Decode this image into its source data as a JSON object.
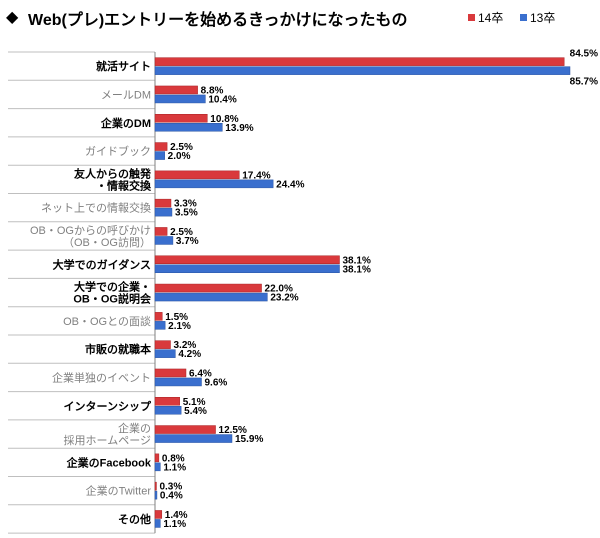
{
  "title": {
    "marker": "◆",
    "text": "Web(プレ)エントリーを始めるきっかけになったもの"
  },
  "colors": {
    "series14": "#d9393c",
    "series13": "#3a6fce",
    "label_bold": "#000000",
    "label_gray": "#808080",
    "grid": "#bfbfbf"
  },
  "legend": [
    {
      "name": "14卒",
      "color": "#d9393c"
    },
    {
      "name": "13卒",
      "color": "#3a6fce"
    }
  ],
  "chart_data": {
    "type": "bar",
    "orientation": "horizontal",
    "title": "Web(プレ)エントリーを始めるきっかけになったもの",
    "xlim": [
      0,
      85.7
    ],
    "legend_position": "top-right",
    "categories": [
      {
        "lines": [
          "就活サイト"
        ],
        "bold": true
      },
      {
        "lines": [
          "メールDM"
        ],
        "bold": false
      },
      {
        "lines": [
          "企業のDM"
        ],
        "bold": true
      },
      {
        "lines": [
          "ガイドブック"
        ],
        "bold": false
      },
      {
        "lines": [
          "友人からの触発",
          "・情報交換"
        ],
        "bold": true
      },
      {
        "lines": [
          "ネット上での情報交換"
        ],
        "bold": false
      },
      {
        "lines": [
          "OB・OGからの呼びかけ",
          "（OB・OG訪問）"
        ],
        "bold": false
      },
      {
        "lines": [
          "大学でのガイダンス"
        ],
        "bold": true
      },
      {
        "lines": [
          "大学での企業・",
          "OB・OG説明会"
        ],
        "bold": true
      },
      {
        "lines": [
          "OB・OGとの面談"
        ],
        "bold": false
      },
      {
        "lines": [
          "市販の就職本"
        ],
        "bold": true
      },
      {
        "lines": [
          "企業単独のイベント"
        ],
        "bold": false
      },
      {
        "lines": [
          "インターンシップ"
        ],
        "bold": true
      },
      {
        "lines": [
          "企業の",
          "採用ホームページ"
        ],
        "bold": false
      },
      {
        "lines": [
          "企業のFacebook"
        ],
        "bold": true
      },
      {
        "lines": [
          "企業のTwitter"
        ],
        "bold": false
      },
      {
        "lines": [
          "その他"
        ],
        "bold": true
      }
    ],
    "series": [
      {
        "name": "14卒",
        "values": [
          84.5,
          8.8,
          10.8,
          2.5,
          17.4,
          3.3,
          2.5,
          38.1,
          22.0,
          1.5,
          3.2,
          6.4,
          5.1,
          12.5,
          0.8,
          0.3,
          1.4
        ],
        "labels": [
          "84.5%",
          "8.8%",
          "10.8%",
          "2.5%",
          "17.4%",
          "3.3%",
          "2.5%",
          "38.1%",
          "22.0%",
          "1.5%",
          "3.2%",
          "6.4%",
          "5.1%",
          "12.5%",
          "0.8%",
          "0.3%",
          "1.4%"
        ]
      },
      {
        "name": "13卒",
        "values": [
          85.7,
          10.4,
          13.9,
          2.0,
          24.4,
          3.5,
          3.7,
          38.1,
          23.2,
          2.1,
          4.2,
          9.6,
          5.4,
          15.9,
          1.1,
          0.4,
          1.1
        ],
        "labels": [
          "85.7%",
          "10.4%",
          "13.9%",
          "2.0%",
          "24.4%",
          "3.5%",
          "3.7%",
          "38.1%",
          "23.2%",
          "2.1%",
          "4.2%",
          "9.6%",
          "5.4%",
          "15.9%",
          "1.1%",
          "0.4%",
          "1.1%"
        ]
      }
    ]
  }
}
